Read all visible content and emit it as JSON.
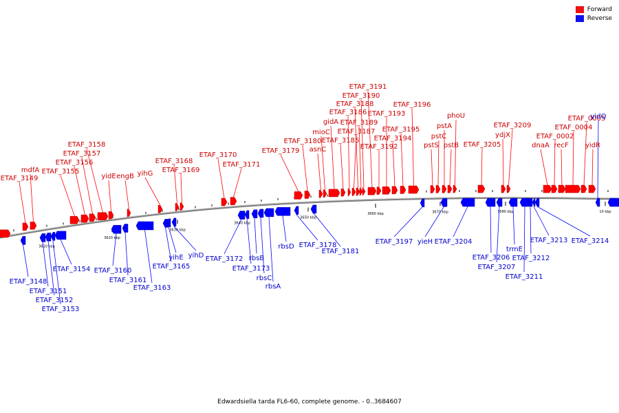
{
  "legend": {
    "forward": {
      "label": "Forward",
      "color": "#ff0000"
    },
    "reverse": {
      "label": "Reverse",
      "color": "#0000ff"
    }
  },
  "caption": "Edwardsiella tarda FL6-60, complete genome. - 0..3684607",
  "colors": {
    "forward": "#ff0000",
    "reverse": "#0000ff",
    "backbone": "#808080"
  },
  "scale_labels": [
    "3610 kbp",
    "3620 kbp",
    "3630 kbp",
    "3640 kbp",
    "3650 kbp",
    "3660 kbp",
    "3670 kbp",
    "3680 kbp",
    "10 kbp"
  ],
  "forward_genes": [
    "mdfA",
    "ETAF_3149",
    "ETAF_3155",
    "ETAF_3156",
    "ETAF_3157",
    "ETAF_3158",
    "yidE",
    "engB",
    "yihG",
    "ETAF_3168",
    "ETAF_3169",
    "ETAF_3170",
    "ETAF_3171",
    "ETAF_3179",
    "ETAF_3180",
    "asnC",
    "mioC",
    "gidA",
    "ETAF_3185",
    "ETAF_3186",
    "ETAF_3187",
    "ETAF_3188",
    "ETAF_3189",
    "ETAF_3190",
    "ETAF_3191",
    "ETAF_3192",
    "ETAF_3193",
    "ETAF_3194",
    "ETAF_3195",
    "ETAF_3196",
    "pstS",
    "pstC",
    "pstA",
    "pstB",
    "phoU",
    "ETAF_3205",
    "ydjX",
    "ETAF_3209",
    "dnaA",
    "ETAF_0002",
    "recF",
    "ETAF_0004",
    "ETAF_0005",
    "yidR"
  ],
  "reverse_genes": [
    "ETAF_3148",
    "ETAF_3151",
    "ETAF_3152",
    "ETAF_3153",
    "ETAF_3154",
    "ETAF_3160",
    "ETAF_3161",
    "ETAF_3163",
    "ETAF_3165",
    "yihE",
    "yihD",
    "ETAF_3172",
    "ETAF_3173",
    "rbsB",
    "rbsC",
    "rbsA",
    "rbsD",
    "ETAF_3178",
    "ETAF_3181",
    "ETAF_3197",
    "yieH",
    "ETAF_3204",
    "ETAF_3206",
    "ETAF_3207",
    "trmE",
    "ETAF_3211",
    "ETAF_3212",
    "ETAF_3213",
    "ETAF_3214",
    "yidQ"
  ]
}
